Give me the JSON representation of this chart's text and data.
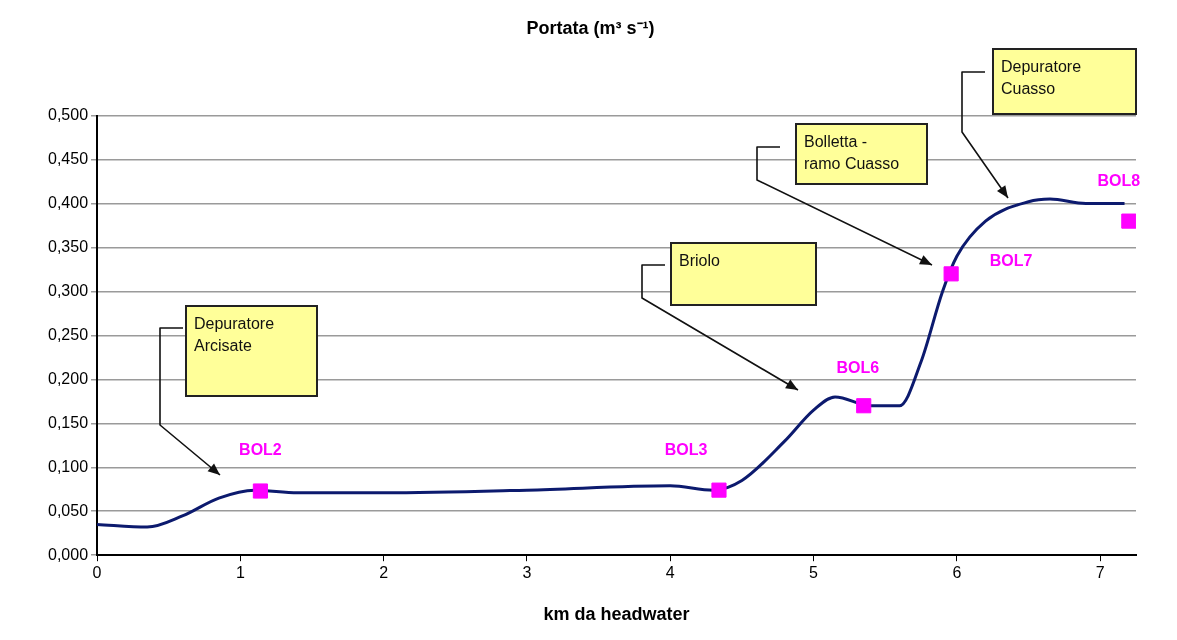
{
  "chart_data": {
    "type": "line",
    "title": "Portata (m³ s⁻¹)",
    "xlabel": "km da headwater",
    "xlim": [
      0,
      7.25
    ],
    "xticks": [
      0,
      1,
      2,
      3,
      4,
      5,
      6,
      7
    ],
    "ylim": [
      0,
      0.5
    ],
    "yticks": [
      {
        "value": 0,
        "label": "0,000"
      },
      {
        "value": 0.05,
        "label": "0,050"
      },
      {
        "value": 0.1,
        "label": "0,100"
      },
      {
        "value": 0.15,
        "label": "0,150"
      },
      {
        "value": 0.2,
        "label": "0,200"
      },
      {
        "value": 0.25,
        "label": "0,250"
      },
      {
        "value": 0.3,
        "label": "0,300"
      },
      {
        "value": 0.35,
        "label": "0,350"
      },
      {
        "value": 0.4,
        "label": "0,400"
      },
      {
        "value": 0.45,
        "label": "0,450"
      },
      {
        "value": 0.5,
        "label": "0,500"
      }
    ],
    "grid": "y",
    "legend": false,
    "series": [
      {
        "color": "#0c1a6e",
        "marker": "none",
        "x": [
          0,
          0.35,
          0.6,
          0.85,
          1.1,
          1.4,
          2,
          3,
          4,
          4.3,
          4.5,
          4.8,
          5,
          5.15,
          5.4,
          5.6,
          5.75,
          5.9,
          6,
          6.2,
          6.5,
          6.65,
          6.9,
          7.17
        ],
        "values": [
          0.035,
          0.032,
          0.045,
          0.065,
          0.074,
          0.071,
          0.071,
          0.074,
          0.079,
          0.074,
          0.085,
          0.13,
          0.165,
          0.18,
          0.17,
          0.17,
          0.22,
          0.3,
          0.34,
          0.38,
          0.402,
          0.405,
          0.4,
          0.4
        ]
      },
      {
        "type": "scatter",
        "color": "#ff00ff",
        "marker": "square",
        "x": [
          1.14,
          4.34,
          5.35,
          5.96,
          7.2
        ],
        "values": [
          0.073,
          0.074,
          0.17,
          0.32,
          0.38
        ]
      }
    ],
    "annotations": [
      "BOL2",
      "BOL3",
      "BOL6",
      "BOL7",
      "BOL8",
      "Depuratore Arcisate",
      "Briolo",
      "Bolletta - ramo Cuasso",
      "Depuratore Cuasso"
    ]
  }
}
